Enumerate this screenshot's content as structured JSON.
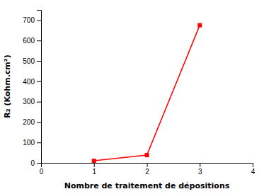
{
  "chart_data": {
    "type": "line",
    "x": [
      1,
      2,
      3
    ],
    "values": [
      10,
      38,
      675
    ],
    "color": "#FF0000",
    "marker": "square",
    "xlabel": "Nombre de traitement de dépositions",
    "ylabel": "R₂ (Kohm.cm²)",
    "xlim": [
      0,
      4
    ],
    "ylim": [
      0,
      750
    ],
    "xticks": [
      0,
      1,
      2,
      3,
      4
    ],
    "yticks": [
      0,
      100,
      200,
      300,
      400,
      500,
      600,
      700
    ]
  }
}
